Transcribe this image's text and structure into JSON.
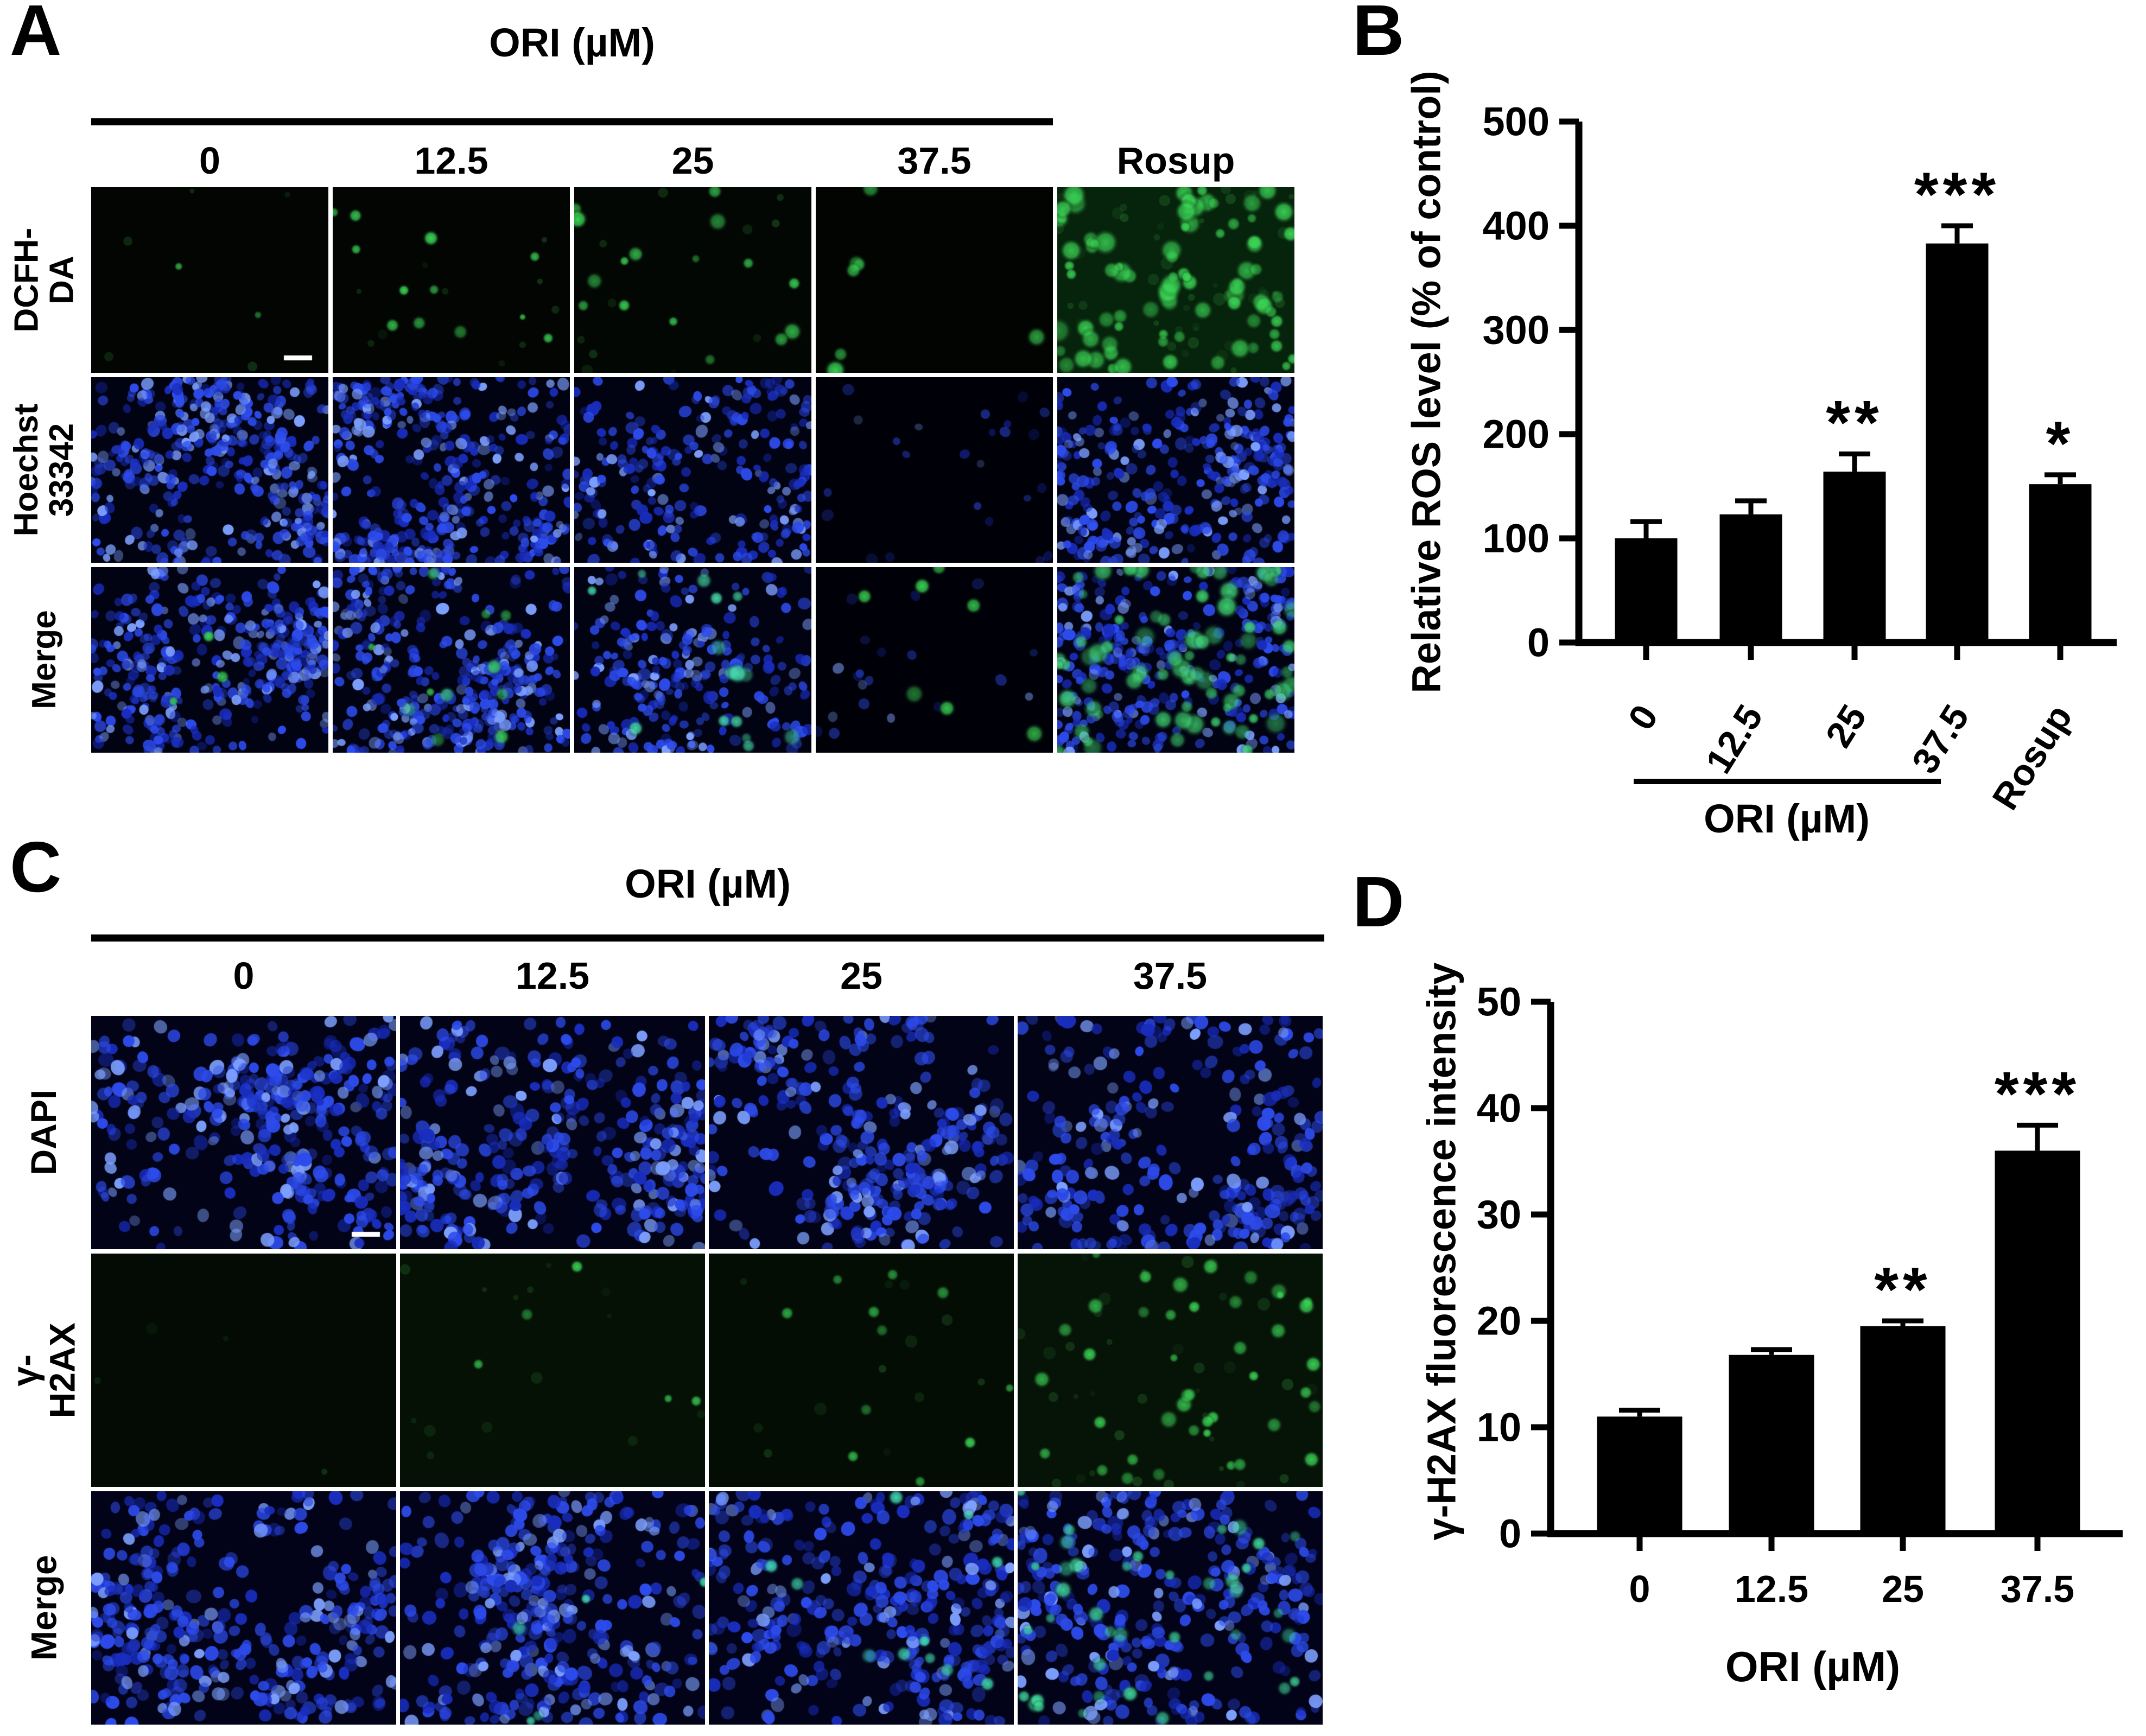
{
  "panel_a": {
    "label": "A",
    "header": "ORI (µM)",
    "columns": [
      "0",
      "12.5",
      "25",
      "37.5",
      "Rosup"
    ],
    "rows": [
      {
        "label": "DCFH-DA",
        "cells": [
          {
            "bg": "#020502",
            "green": 2,
            "gs": [
              4,
              6
            ],
            "ga": 0.8,
            "faint": 5,
            "scalebar": true
          },
          {
            "bg": "#020502",
            "green": 12,
            "gs": [
              4,
              9
            ],
            "faint": 10
          },
          {
            "bg": "#030703",
            "green": 16,
            "gs": [
              5,
              11
            ],
            "faint": 12
          },
          {
            "bg": "#010401",
            "green": 7,
            "gs": [
              8,
              13
            ]
          },
          {
            "bg": "#06230b",
            "green": 85,
            "gs": [
              6,
              15
            ],
            "faint": 45
          }
        ]
      },
      {
        "label": "Hoechst\n33342",
        "cells": [
          {
            "bg": "#010212",
            "blue": 390
          },
          {
            "bg": "#010212",
            "blue": 390
          },
          {
            "bg": "#010212",
            "blue": 240
          },
          {
            "bg": "#000108",
            "blue": 24,
            "ba": 0.55
          },
          {
            "bg": "#010212",
            "blue": 330
          }
        ]
      },
      {
        "label": "Merge",
        "cells": [
          {
            "bg": "#010212",
            "blue": 380,
            "green": 3,
            "gs": [
              5,
              8
            ]
          },
          {
            "bg": "#010212",
            "blue": 380,
            "green": 11,
            "gs": [
              5,
              10
            ]
          },
          {
            "bg": "#010212",
            "blue": 240,
            "green": 15,
            "gs": [
              6,
              12
            ],
            "gc": "#45d9a8"
          },
          {
            "bg": "#000108",
            "blue": 20,
            "ba": 0.6,
            "green": 7,
            "gs": [
              8,
              13
            ]
          },
          {
            "bg": "#010212",
            "blue": 320,
            "green": 72,
            "gs": [
              6,
              14
            ],
            "gc": "#3ecf6e"
          }
        ]
      }
    ]
  },
  "panel_c": {
    "label": "C",
    "header": "ORI (µM)",
    "columns": [
      "0",
      "12.5",
      "25",
      "37.5"
    ],
    "rows": [
      {
        "label": "DAPI",
        "cells": [
          {
            "bg": "#020316",
            "blue": 360,
            "br": [
              9,
              13
            ],
            "scalebar": true
          },
          {
            "bg": "#020316",
            "blue": 360,
            "br": [
              9,
              13
            ]
          },
          {
            "bg": "#020316",
            "blue": 330,
            "br": [
              9,
              13
            ]
          },
          {
            "bg": "#020316",
            "blue": 290,
            "br": [
              9,
              13
            ]
          }
        ]
      },
      {
        "label": "γ-H2AX",
        "cells": [
          {
            "bg": "#030b04",
            "faint": 4
          },
          {
            "bg": "#051105",
            "green": 5,
            "gs": [
              5,
              9
            ],
            "faint": 14
          },
          {
            "bg": "#040d04",
            "green": 11,
            "gs": [
              5,
              9
            ],
            "faint": 12
          },
          {
            "bg": "#061307",
            "green": 42,
            "gs": [
              5,
              11
            ],
            "faint": 35
          }
        ]
      },
      {
        "label": "Merge",
        "cells": [
          {
            "bg": "#020318",
            "blue": 360,
            "br": [
              9,
              13
            ]
          },
          {
            "bg": "#020318",
            "blue": 360,
            "br": [
              9,
              13
            ],
            "green": 5,
            "gs": [
              6,
              10
            ],
            "gc": "#40d8b0"
          },
          {
            "bg": "#020318",
            "blue": 340,
            "br": [
              9,
              13
            ],
            "green": 11,
            "gs": [
              6,
              10
            ],
            "gc": "#40d8b0"
          },
          {
            "bg": "#020318",
            "blue": 320,
            "br": [
              9,
              13
            ],
            "green": 40,
            "gs": [
              6,
              11
            ],
            "gc": "#3fd89a"
          }
        ]
      }
    ]
  },
  "chart_data": [
    {
      "panel_label": "B",
      "type": "bar",
      "title": "",
      "categories": [
        "0",
        "12.5",
        "25",
        "37.5",
        "Rosup"
      ],
      "values": [
        100,
        123,
        164,
        383,
        152
      ],
      "errors": [
        16,
        13,
        17,
        17,
        9
      ],
      "significance": [
        "",
        "",
        "**",
        "***",
        "*"
      ],
      "ylabel": "Relative ROS level (% of control)",
      "xlabel": "",
      "group_label": "ORI (µM)",
      "group_span": [
        "0",
        "37.5"
      ],
      "ylim": [
        0,
        500
      ],
      "yticks": [
        0,
        100,
        200,
        300,
        400,
        500
      ],
      "bar_color": "#000000",
      "legend": "none",
      "grid": "off"
    },
    {
      "panel_label": "D",
      "type": "bar",
      "title": "",
      "categories": [
        "0",
        "12.5",
        "25",
        "37.5"
      ],
      "values": [
        11,
        16.8,
        19.5,
        36
      ],
      "errors": [
        0.6,
        0.5,
        0.5,
        2.4
      ],
      "significance": [
        "",
        "",
        "**",
        "***"
      ],
      "ylabel": "γ-H2AX fluorescence intensity",
      "xlabel": "ORI (µM)",
      "ylim": [
        0,
        50
      ],
      "yticks": [
        0,
        10,
        20,
        30,
        40,
        50
      ],
      "bar_color": "#000000",
      "legend": "none",
      "grid": "off"
    }
  ],
  "colors": {
    "axis": "#000000",
    "bar": "#000000",
    "nucleus_blue": "#2d4beb",
    "signal_green": "#3bd455",
    "background": "#ffffff"
  }
}
